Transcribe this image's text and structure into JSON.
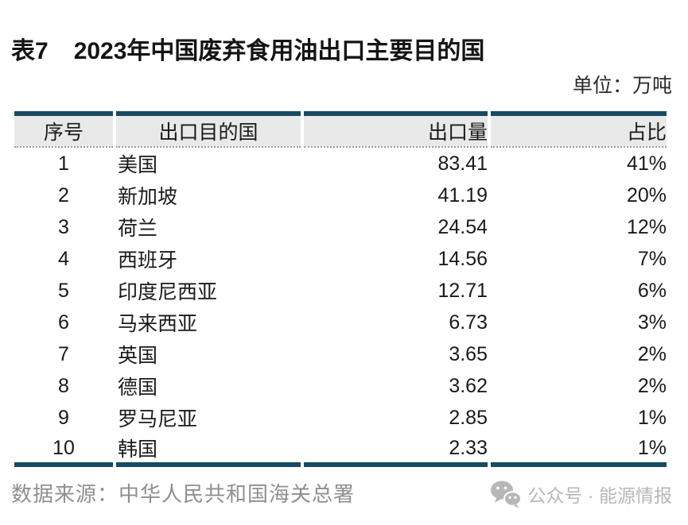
{
  "header": {
    "table_tag": "表7",
    "title": "2023年中国废弃食用油出口主要目的国",
    "unit_label": "单位：万吨"
  },
  "chart_data": {
    "type": "table",
    "title": "表7 2023年中国废弃食用油出口主要目的国",
    "unit": "万吨",
    "columns": [
      "序号",
      "出口目的国",
      "出口量",
      "占比"
    ],
    "rows": [
      [
        "1",
        "美国",
        "83.41",
        "41%"
      ],
      [
        "2",
        "新加坡",
        "41.19",
        "20%"
      ],
      [
        "3",
        "荷兰",
        "24.54",
        "12%"
      ],
      [
        "4",
        "西班牙",
        "14.56",
        "7%"
      ],
      [
        "5",
        "印度尼西亚",
        "12.71",
        "6%"
      ],
      [
        "6",
        "马来西亚",
        "6.73",
        "3%"
      ],
      [
        "7",
        "英国",
        "3.65",
        "2%"
      ],
      [
        "8",
        "德国",
        "3.62",
        "2%"
      ],
      [
        "9",
        "罗马尼亚",
        "2.85",
        "1%"
      ],
      [
        "10",
        "韩国",
        "2.33",
        "1%"
      ]
    ]
  },
  "footer": {
    "source": "数据来源：中华人民共和国海关总署",
    "wechat_badge": {
      "icon": "wechat-icon",
      "label": "公众号 · 能源情报"
    }
  },
  "colors": {
    "accent_border": "#174a63",
    "header_bg": "#e9e9e9",
    "body_text": "#1a1a1a",
    "source_text": "#8f8f8f",
    "badge_text": "#b7b7b7"
  }
}
